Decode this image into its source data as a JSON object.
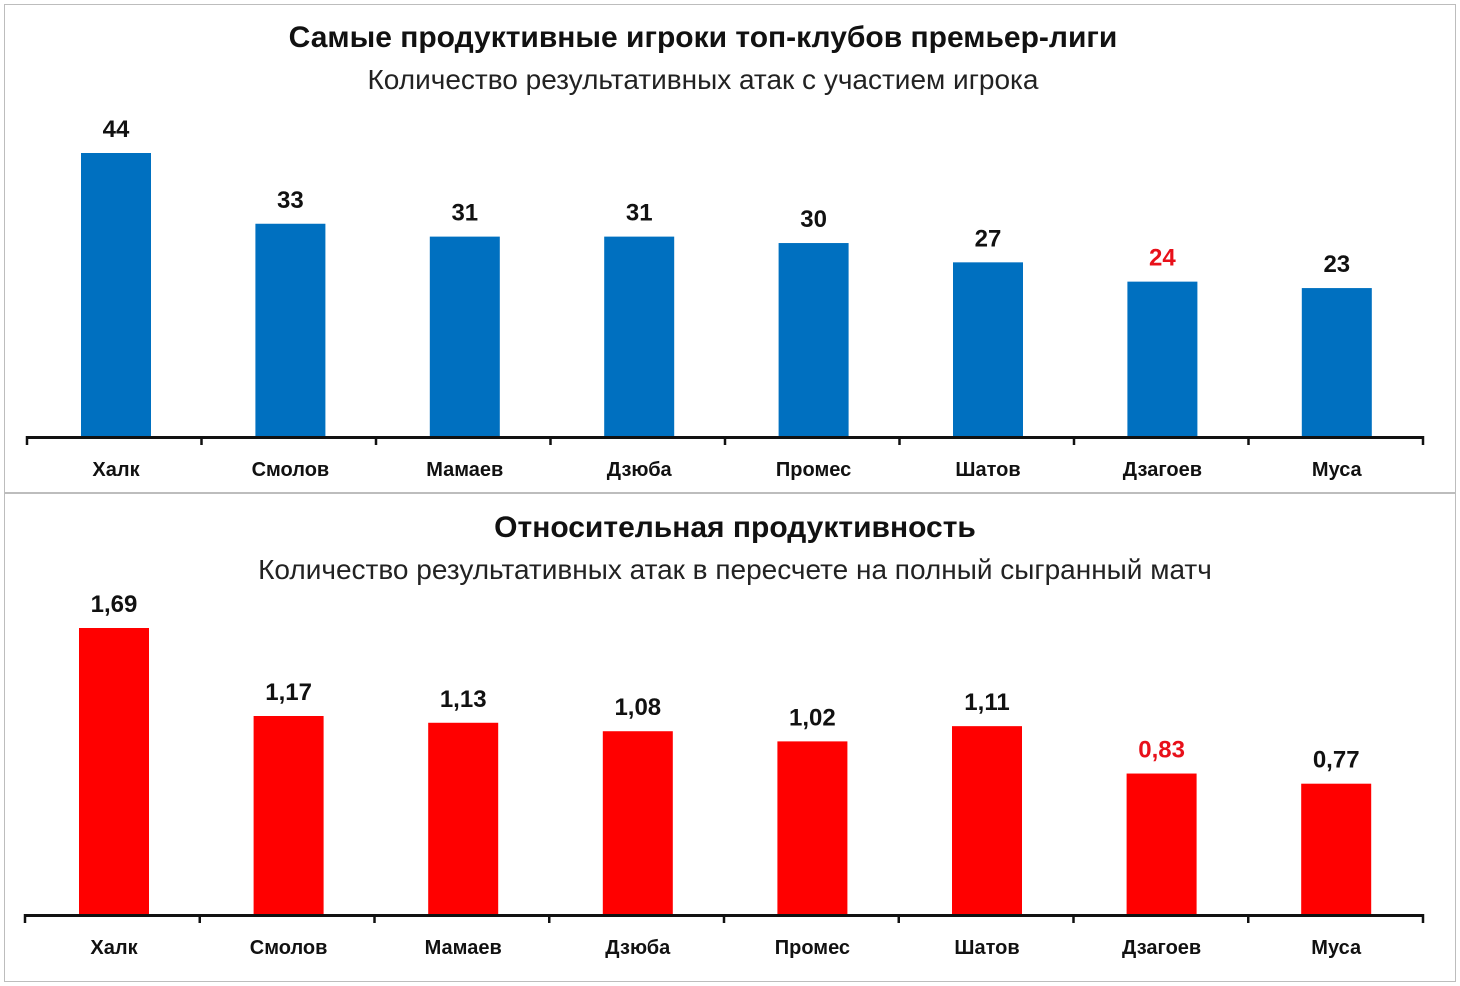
{
  "chart_data": [
    {
      "type": "bar",
      "title": "Самые продуктивные игроки топ-клубов премьер-лиги",
      "subtitle": "Количество результативных атак с участием игрока",
      "categories": [
        "Халк",
        "Смолов",
        "Мамаев",
        "Дзюба",
        "Промес",
        "Шатов",
        "Дзагоев",
        "Муса"
      ],
      "values": [
        44,
        33,
        31,
        31,
        30,
        27,
        24,
        23
      ],
      "data_labels": [
        "44",
        "33",
        "31",
        "31",
        "30",
        "27",
        "24",
        "23"
      ],
      "highlight_index": 6,
      "ylim": [
        0,
        44
      ],
      "bar_color": "#0070c0",
      "label_color": "#111111",
      "highlight_label_color": "#e8101a",
      "xlabel": "",
      "ylabel": "",
      "grid": false
    },
    {
      "type": "bar",
      "title": "Относительная продуктивность",
      "subtitle": "Количество результативных атак в пересчете на полный сыгранный матч",
      "categories": [
        "Халк",
        "Смолов",
        "Мамаев",
        "Дзюба",
        "Промес",
        "Шатов",
        "Дзагоев",
        "Муса"
      ],
      "values": [
        1.69,
        1.17,
        1.13,
        1.08,
        1.02,
        1.11,
        0.83,
        0.77
      ],
      "data_labels": [
        "1,69",
        "1,17",
        "1,13",
        "1,08",
        "1,02",
        "1,11",
        "0,83",
        "0,77"
      ],
      "highlight_index": 6,
      "ylim": [
        0,
        1.69
      ],
      "bar_color": "#ff0000",
      "label_color": "#111111",
      "highlight_label_color": "#e8101a",
      "xlabel": "",
      "ylabel": "",
      "grid": false
    }
  ]
}
